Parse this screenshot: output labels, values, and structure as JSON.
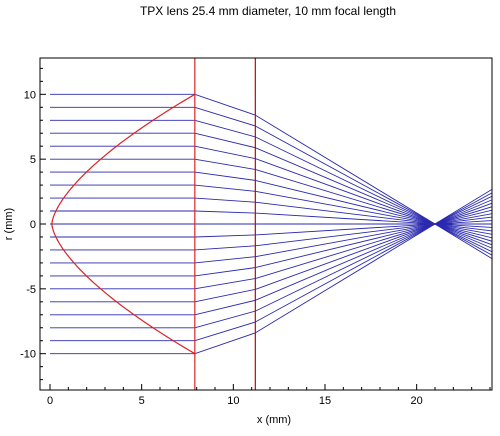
{
  "chart_data": {
    "type": "line",
    "title": "TPX lens 25.4 mm diameter, 10 mm focal length",
    "xlabel": "x (mm)",
    "ylabel": "r (mm)",
    "xlim": [
      0,
      24
    ],
    "ylim": [
      -12.8,
      12.8
    ],
    "x_ticks": [
      0,
      5,
      10,
      15,
      20
    ],
    "x_tick_labels": [
      "0",
      "5",
      "10",
      "15",
      "20"
    ],
    "y_ticks": [
      -10,
      -5,
      0,
      5,
      10
    ],
    "y_tick_labels": [
      "-10",
      "-5",
      "0",
      "5",
      "10"
    ],
    "grid": false,
    "lens": {
      "color": "#dd2222",
      "back_plane_x": 7.9,
      "vertex_x": 0.1,
      "half_aperture": 10,
      "plane_top": 12.8,
      "plane_bottom": -12.8
    },
    "reference_line": {
      "x": 11.2,
      "color": "#cc0000"
    },
    "rays": {
      "color": "#2a2ab0",
      "heights": [
        -10,
        -9,
        -8,
        -7,
        -6,
        -5,
        -4,
        -3,
        -2,
        -1,
        0,
        1,
        2,
        3,
        4,
        5,
        6,
        7,
        8,
        9,
        10
      ],
      "focus_x": 21,
      "start_x": 0
    }
  }
}
